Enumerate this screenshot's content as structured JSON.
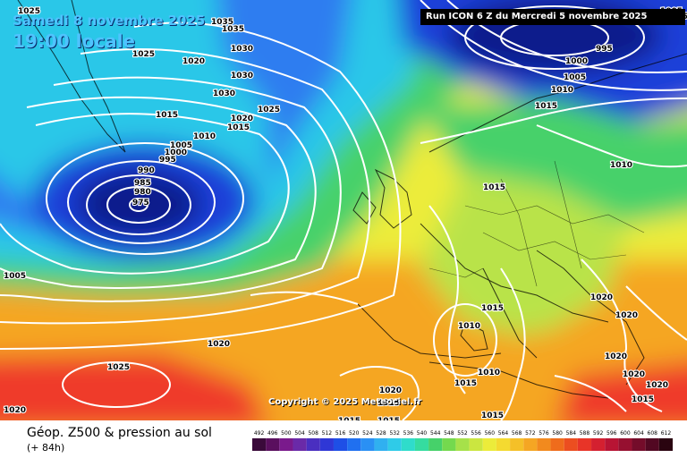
{
  "header": {
    "date": "Samedi 8 novembre 2025",
    "time": "19:00 locale",
    "run": "Run ICON 6 Z du Mercredi 5 novembre 2025"
  },
  "copyright": "Copyright © 2025 Meteociel.fr",
  "footer": {
    "title": "Géop. Z500 & pression au sol",
    "subtitle": "(+ 84h)"
  },
  "colors": {
    "low_core": "#0d1a8c",
    "deep_blue": "#1e3fd9",
    "blue": "#2f7df0",
    "cyan": "#29c7e8",
    "green": "#46d16a",
    "yellowgreen": "#b9e34a",
    "yellow": "#f2f03a",
    "orange": "#f5a623",
    "red": "#ef3b2c",
    "contour": "#ffffff"
  },
  "scale": {
    "labels": [
      "492",
      "496",
      "500",
      "504",
      "508",
      "512",
      "516",
      "520",
      "524",
      "528",
      "532",
      "536",
      "540",
      "544",
      "548",
      "552",
      "556",
      "560",
      "564",
      "568",
      "572",
      "576",
      "580",
      "584",
      "588",
      "592",
      "596",
      "600",
      "604",
      "608",
      "612"
    ],
    "colors": [
      "#3a0a3a",
      "#5a0f5e",
      "#7a1a8c",
      "#6a2aa8",
      "#4a2fc0",
      "#2f37d6",
      "#1e4fe6",
      "#2070f0",
      "#2a90f4",
      "#30b0f0",
      "#2fcbe8",
      "#2fdccb",
      "#35dca0",
      "#46d16a",
      "#74d94e",
      "#a6e14a",
      "#cbe640",
      "#ecec3a",
      "#f4da30",
      "#f5c028",
      "#f5a623",
      "#f28a1e",
      "#ef6c1c",
      "#ec4e20",
      "#e83428",
      "#d42030",
      "#b81434",
      "#961030",
      "#740c2a",
      "#520822",
      "#2a0410"
    ]
  },
  "isobars": [
    {
      "text": "1005"
    },
    {
      "text": "1035"
    },
    {
      "text": "1035"
    },
    {
      "text": "1025"
    },
    {
      "text": "1025"
    },
    {
      "text": "1020"
    },
    {
      "text": "1030"
    },
    {
      "text": "1030"
    },
    {
      "text": "1030"
    },
    {
      "text": "1025"
    },
    {
      "text": "1015"
    },
    {
      "text": "1020"
    },
    {
      "text": "1015"
    },
    {
      "text": "1010"
    },
    {
      "text": "1005"
    },
    {
      "text": "1000"
    },
    {
      "text": "995"
    },
    {
      "text": "990"
    },
    {
      "text": "985"
    },
    {
      "text": "980"
    },
    {
      "text": "975"
    },
    {
      "text": "1005"
    },
    {
      "text": "995"
    },
    {
      "text": "1000"
    },
    {
      "text": "1005"
    },
    {
      "text": "1010"
    },
    {
      "text": "1015"
    },
    {
      "text": "1010"
    },
    {
      "text": "1015"
    },
    {
      "text": "1015"
    },
    {
      "text": "1010"
    },
    {
      "text": "1010"
    },
    {
      "text": "1015"
    },
    {
      "text": "1020"
    },
    {
      "text": "1020"
    },
    {
      "text": "1020"
    },
    {
      "text": "1020"
    },
    {
      "text": "1020"
    },
    {
      "text": "1025"
    },
    {
      "text": "1020"
    },
    {
      "text": "1020"
    },
    {
      "text": "1015"
    },
    {
      "text": "1015"
    },
    {
      "text": "1015"
    },
    {
      "text": "1020"
    },
    {
      "text": "1015"
    },
    {
      "text": "1020"
    },
    {
      "text": "1015"
    },
    {
      "text": "1005"
    }
  ]
}
